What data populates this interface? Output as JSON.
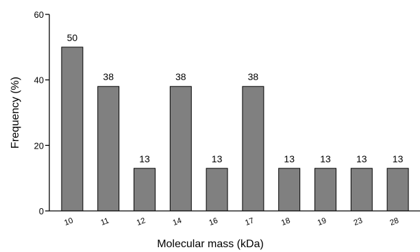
{
  "chart_data": {
    "type": "bar",
    "title": "",
    "xlabel": "Molecular mass (kDa)",
    "ylabel": "Frequency (%)",
    "ylim": [
      0,
      60
    ],
    "yticks": [
      0,
      20,
      40,
      60
    ],
    "categories": [
      "10",
      "11",
      "12",
      "14",
      "16",
      "17",
      "18",
      "19",
      "23",
      "28"
    ],
    "values": [
      50,
      38,
      13,
      38,
      13,
      38,
      13,
      13,
      13,
      13
    ],
    "data_labels": [
      "50",
      "38",
      "13",
      "38",
      "13",
      "38",
      "13",
      "13",
      "13",
      "13"
    ],
    "bar_color": "#808080",
    "grid": false,
    "legend": "none"
  }
}
